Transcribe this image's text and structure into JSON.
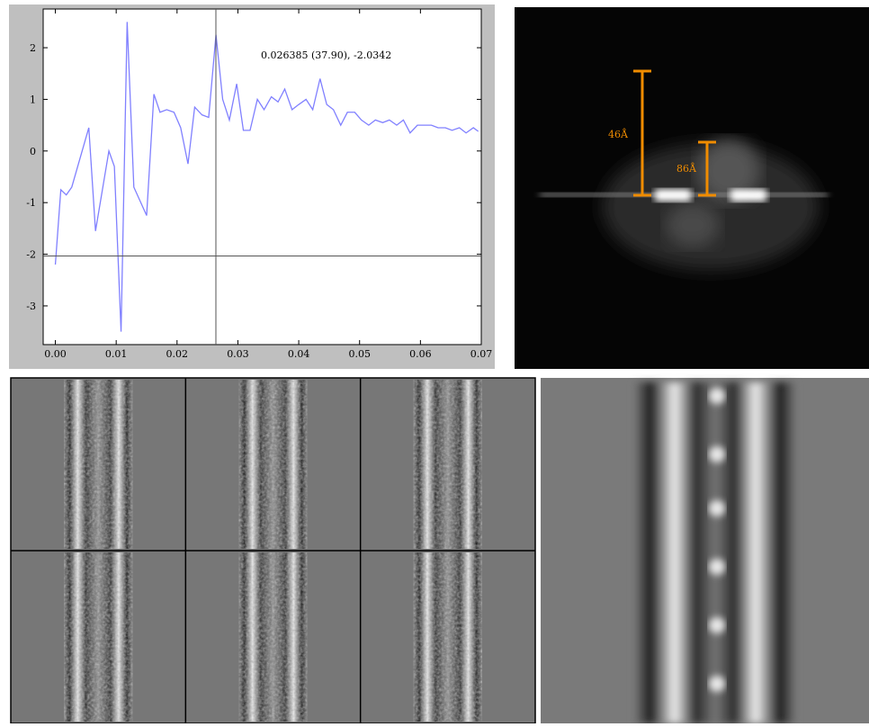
{
  "chart_data": {
    "type": "line",
    "x": [
      0.0,
      0.0009,
      0.0018,
      0.0027,
      0.0055,
      0.0066,
      0.0088,
      0.0097,
      0.0108,
      0.0118,
      0.0129,
      0.015,
      0.0162,
      0.0172,
      0.0183,
      0.0195,
      0.0206,
      0.0218,
      0.0229,
      0.0241,
      0.0252,
      0.0264,
      0.0275,
      0.0286,
      0.0298,
      0.0309,
      0.032,
      0.0332,
      0.0343,
      0.0355,
      0.0366,
      0.0377,
      0.0389,
      0.04,
      0.0412,
      0.0423,
      0.0435,
      0.0446,
      0.0457,
      0.0469,
      0.048,
      0.0492,
      0.0503,
      0.0515,
      0.0526,
      0.0538,
      0.0549,
      0.0561,
      0.0572,
      0.0583,
      0.0595,
      0.0606,
      0.0618,
      0.0629,
      0.0641,
      0.0652,
      0.0664,
      0.0675,
      0.0687,
      0.0695
    ],
    "series": [
      {
        "color": "#8080ff",
        "values": [
          -2.2,
          -0.75,
          -0.85,
          -0.7,
          0.45,
          -1.55,
          0.0,
          -0.3,
          -3.5,
          2.5,
          -0.7,
          -1.25,
          1.1,
          0.75,
          0.8,
          0.75,
          0.45,
          -0.25,
          0.85,
          0.7,
          0.65,
          2.25,
          1.0,
          0.6,
          1.3,
          0.4,
          0.4,
          1.0,
          0.8,
          1.05,
          0.95,
          1.2,
          0.8,
          0.9,
          1.0,
          0.8,
          1.4,
          0.9,
          0.8,
          0.5,
          0.75,
          0.75,
          0.6,
          0.5,
          0.6,
          0.55,
          0.6,
          0.5,
          0.6,
          0.35,
          0.5,
          0.5,
          0.5,
          0.45,
          0.45,
          0.4,
          0.45,
          0.35,
          0.45,
          0.38
        ]
      }
    ],
    "xlim": [
      -0.002,
      0.07
    ],
    "ylim": [
      -3.75,
      2.75
    ],
    "xticks": [
      {
        "value": 0,
        "label": "0.00"
      },
      {
        "value": 0.01,
        "label": "0.01"
      },
      {
        "value": 0.02,
        "label": "0.02"
      },
      {
        "value": 0.03,
        "label": "0.03"
      },
      {
        "value": 0.04,
        "label": "0.04"
      },
      {
        "value": 0.05,
        "label": "0.05"
      },
      {
        "value": 0.06,
        "label": "0.06"
      },
      {
        "value": 0.07,
        "label": "0.07"
      }
    ],
    "yticks": [
      -3,
      -2,
      -1,
      0,
      1,
      2
    ],
    "crosshair": {
      "x": 0.026385,
      "y": -2.0342
    },
    "annotation": "0.026385 (37.90), -2.0342"
  },
  "fft_panel": {
    "labels": [
      "46Å",
      "86Å"
    ]
  }
}
